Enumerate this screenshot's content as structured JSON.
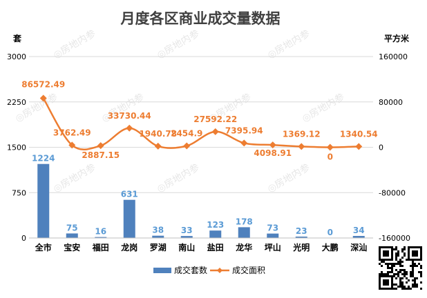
{
  "chart_data": {
    "type": "bar+line",
    "title": "月度各区商业成交量数据",
    "left_axis_label": "套",
    "right_axis_label": "平方米",
    "categories": [
      "全市",
      "宝安",
      "福田",
      "龙岗",
      "罗湖",
      "南山",
      "盐田",
      "龙华",
      "坪山",
      "光明",
      "大鹏",
      "深汕"
    ],
    "left_ylim": [
      0,
      3000
    ],
    "left_ticks": [
      0,
      750,
      1500,
      2250,
      3000
    ],
    "right_ylim": [
      -160000,
      160000
    ],
    "right_ticks": [
      -160000,
      -80000,
      0,
      80000,
      160000
    ],
    "series": [
      {
        "name": "成交套数",
        "type": "bar",
        "axis": "left",
        "color": "#4f81bd",
        "label_color": "#5b9bd5",
        "values": [
          1224,
          75,
          16,
          631,
          38,
          33,
          123,
          178,
          73,
          23,
          0,
          34
        ],
        "labels": [
          "1224",
          "75",
          "16",
          "631",
          "38",
          "33",
          "123",
          "178",
          "73",
          "23",
          "0",
          "34"
        ]
      },
      {
        "name": "成交面积",
        "type": "line",
        "axis": "right",
        "color": "#ed7d31",
        "values": [
          86572.49,
          3762.49,
          2887.15,
          33730.44,
          1940.78,
          2454.9,
          27592.22,
          7395.94,
          4098.91,
          1369.12,
          0,
          1340.54
        ],
        "labels": [
          "86572.49",
          "3762.49",
          "2887.15",
          "33730.44",
          "1940.78",
          "2454.9",
          "27592.22",
          "7395.94",
          "4098.91",
          "1369.12",
          "0",
          "1340.54"
        ]
      }
    ],
    "grid": true,
    "legend_position": "bottom"
  },
  "watermark": "房地内参",
  "colors": {
    "title": "#404040",
    "axis_text": "#000000",
    "grid": "#d9d9d9"
  }
}
